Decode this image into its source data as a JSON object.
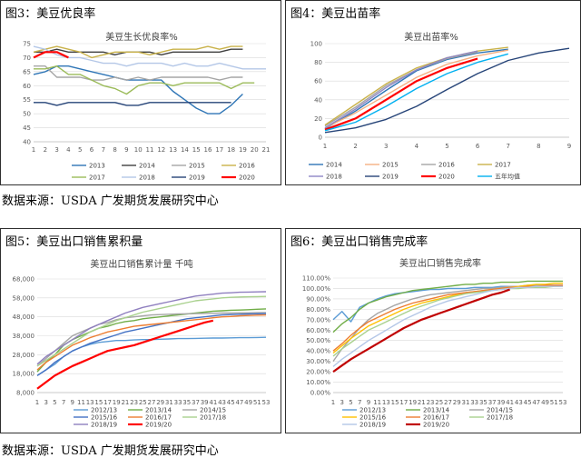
{
  "panels": [
    {
      "label": "图3：美豆优良率"
    },
    {
      "label": "图4：美豆出苗率"
    },
    {
      "label": "图5：美豆出口销售累积量"
    },
    {
      "label": "图6：美豆出口销售完成率"
    }
  ],
  "sources": [
    "数据来源：USDA 广发期货发展研究中心",
    "数据来源：USDA 广发期货发展研究中心"
  ],
  "colors": {
    "border": "#2f2f2f",
    "grid": "#d9d9d9"
  },
  "chart_data": [
    {
      "type": "line",
      "title": "美豆生长优良率%",
      "x": [
        1,
        2,
        3,
        4,
        5,
        6,
        7,
        8,
        9,
        10,
        11,
        12,
        13,
        14,
        15,
        16,
        17,
        18,
        19,
        20,
        21
      ],
      "ylim": [
        40,
        75
      ],
      "yticks": [
        40,
        45,
        50,
        55,
        60,
        65,
        70,
        75
      ],
      "legend_cols": 4,
      "series": [
        {
          "name": "2013",
          "color": "#2e75b6",
          "values": [
            64,
            65,
            67,
            67,
            66,
            65,
            64,
            63,
            62,
            62,
            62,
            62,
            58,
            55,
            52,
            50,
            50,
            53,
            57,
            null,
            null
          ]
        },
        {
          "name": "2014",
          "color": "#404040",
          "values": [
            72,
            72,
            73,
            72,
            72,
            72,
            72,
            71,
            72,
            72,
            72,
            71,
            72,
            72,
            72,
            72,
            72,
            73,
            73,
            null,
            null
          ]
        },
        {
          "name": "2015",
          "color": "#a5a5a5",
          "values": [
            67,
            67,
            63,
            63,
            63,
            62,
            62,
            63,
            62,
            63,
            62,
            63,
            63,
            63,
            63,
            63,
            62,
            63,
            63,
            null,
            null
          ]
        },
        {
          "name": "2016",
          "color": "#c9b24a",
          "values": [
            72,
            73,
            74,
            73,
            72,
            70,
            71,
            72,
            72,
            72,
            71,
            72,
            73,
            73,
            73,
            74,
            73,
            74,
            74,
            null,
            null
          ]
        },
        {
          "name": "2017",
          "color": "#9bbb59",
          "values": [
            66,
            66,
            67,
            64,
            64,
            62,
            60,
            59,
            57,
            60,
            61,
            61,
            60,
            61,
            61,
            61,
            61,
            59,
            61,
            61,
            null
          ]
        },
        {
          "name": "2018",
          "color": "#b4c7e7",
          "values": [
            74,
            73,
            71,
            70,
            70,
            69,
            68,
            68,
            67,
            68,
            68,
            68,
            67,
            68,
            67,
            67,
            68,
            67,
            66,
            66,
            66
          ]
        },
        {
          "name": "2019",
          "color": "#264478",
          "values": [
            54,
            54,
            53,
            54,
            54,
            54,
            54,
            54,
            53,
            53,
            54,
            54,
            54,
            54,
            54,
            54,
            54,
            54,
            null,
            null,
            null
          ]
        },
        {
          "name": "2020",
          "color": "#ff0000",
          "values": [
            70,
            72,
            72,
            70,
            null,
            null,
            null,
            null,
            null,
            null,
            null,
            null,
            null,
            null,
            null,
            null,
            null,
            null,
            null,
            null,
            null
          ]
        }
      ]
    },
    {
      "type": "line",
      "title": "美豆出苗率%",
      "x": [
        1,
        2,
        3,
        4,
        5,
        6,
        7,
        8,
        9
      ],
      "ylim": [
        0,
        100
      ],
      "yticks": [
        0,
        20,
        40,
        60,
        80,
        100
      ],
      "legend_cols": 4,
      "series": [
        {
          "name": "2014",
          "color": "#2e75b6",
          "values": [
            9,
            28,
            50,
            71,
            83,
            90,
            94,
            null,
            null
          ]
        },
        {
          "name": "2015",
          "color": "#f4b183",
          "values": [
            10,
            26,
            45,
            64,
            78,
            87,
            93,
            null,
            null
          ]
        },
        {
          "name": "2016",
          "color": "#a5a5a5",
          "values": [
            12,
            32,
            55,
            72,
            84,
            91,
            null,
            null,
            null
          ]
        },
        {
          "name": "2017",
          "color": "#c9b24a",
          "values": [
            13,
            35,
            57,
            74,
            85,
            92,
            96,
            null,
            null
          ]
        },
        {
          "name": "2018",
          "color": "#8e86c6",
          "values": [
            10,
            30,
            53,
            72,
            85,
            92,
            null,
            null,
            null
          ]
        },
        {
          "name": "2019",
          "color": "#264478",
          "values": [
            5,
            10,
            19,
            33,
            51,
            68,
            82,
            90,
            95
          ]
        },
        {
          "name": "2020",
          "color": "#ff0000",
          "values": [
            8,
            20,
            40,
            60,
            74,
            84,
            null,
            null,
            null
          ]
        },
        {
          "name": "五年均值",
          "color": "#00b0f0",
          "values": [
            7,
            16,
            33,
            52,
            68,
            80,
            89,
            null,
            null
          ]
        }
      ]
    },
    {
      "type": "line",
      "title": "美豆出口销售累计量 千吨",
      "x": [
        1,
        3,
        5,
        7,
        9,
        11,
        13,
        15,
        17,
        19,
        21,
        23,
        25,
        27,
        29,
        31,
        33,
        35,
        37,
        39,
        41,
        43,
        45,
        47,
        49,
        51,
        53
      ],
      "ylim": [
        8000,
        68000
      ],
      "yticks": [
        8000,
        18000,
        28000,
        38000,
        48000,
        58000,
        68000
      ],
      "legend_cols": 3,
      "series": [
        {
          "name": "2012/13",
          "color": "#5b9bd5",
          "values": [
            17000,
            20000,
            23000,
            27000,
            30000,
            32000,
            33500,
            34500,
            35000,
            35500,
            35500,
            35800,
            36000,
            36000,
            36200,
            36300,
            36500,
            36500,
            36600,
            36700,
            36800,
            36800,
            36900,
            37000,
            37000,
            37100,
            37200
          ]
        },
        {
          "name": "2013/14",
          "color": "#70ad47",
          "values": [
            19000,
            24000,
            28000,
            33000,
            36000,
            38000,
            40000,
            42000,
            43000,
            44500,
            45500,
            46000,
            47000,
            47500,
            48000,
            48500,
            49000,
            49500,
            50000,
            50500,
            51000,
            51200,
            51500,
            51600,
            51800,
            52000,
            52200
          ]
        },
        {
          "name": "2014/15",
          "color": "#a5a5a5",
          "values": [
            22000,
            26000,
            30000,
            34000,
            38000,
            40000,
            42000,
            44000,
            45000,
            46500,
            47500,
            48000,
            48500,
            49000,
            49200,
            49400,
            49500,
            49600,
            49700,
            49800,
            49900,
            50000,
            50000,
            50100,
            50100,
            50200,
            50200
          ]
        },
        {
          "name": "2015/16",
          "color": "#4472c4",
          "values": [
            17000,
            20000,
            24000,
            27000,
            30000,
            32000,
            34000,
            35500,
            37000,
            38500,
            40000,
            41000,
            42000,
            43000,
            44000,
            45000,
            46000,
            47000,
            47500,
            48000,
            48500,
            49000,
            49200,
            49400,
            49500,
            49600,
            49700
          ]
        },
        {
          "name": "2016/17",
          "color": "#ed7d31",
          "values": [
            20000,
            24000,
            27000,
            30000,
            33000,
            35000,
            37000,
            38500,
            40000,
            41000,
            42000,
            43000,
            43500,
            44000,
            44500,
            45000,
            45500,
            46000,
            46500,
            47000,
            47500,
            48000,
            48200,
            48500,
            48700,
            48900,
            49000
          ]
        },
        {
          "name": "2017/18",
          "color": "#a9d18e",
          "values": [
            22000,
            25000,
            28000,
            31000,
            34000,
            37000,
            40000,
            42000,
            44000,
            46000,
            47500,
            49000,
            50500,
            51500,
            52500,
            53500,
            54500,
            55500,
            56500,
            57000,
            57500,
            58000,
            58300,
            58500,
            58600,
            58700,
            58800
          ]
        },
        {
          "name": "2018/19",
          "color": "#8f7fbf",
          "values": [
            23000,
            27000,
            30000,
            33000,
            36000,
            39000,
            42000,
            44000,
            46000,
            48000,
            50000,
            51500,
            53000,
            54000,
            55000,
            56000,
            57000,
            58000,
            59000,
            59500,
            60000,
            60500,
            60700,
            61000,
            61100,
            61200,
            61300
          ]
        },
        {
          "name": "2019/20",
          "color": "#ff0000",
          "values": [
            10000,
            13500,
            17000,
            19500,
            22000,
            24000,
            26000,
            28000,
            30000,
            31000,
            32000,
            33000,
            34500,
            36000,
            37500,
            39000,
            40500,
            42000,
            43500,
            45000,
            46000,
            null,
            null,
            null,
            null,
            null,
            null
          ]
        }
      ]
    },
    {
      "type": "line",
      "title": "美豆出口销售完成率",
      "x": [
        1,
        3,
        5,
        7,
        9,
        11,
        13,
        15,
        17,
        19,
        21,
        23,
        25,
        27,
        29,
        31,
        33,
        35,
        37,
        39,
        41,
        43,
        45,
        47,
        49,
        51,
        53
      ],
      "ylim": [
        0,
        110
      ],
      "yticks": [
        0,
        10,
        20,
        30,
        40,
        50,
        60,
        70,
        80,
        90,
        100,
        110
      ],
      "yticklabels": [
        "0.00%",
        "10.00%",
        "20.00%",
        "30.00%",
        "40.00%",
        "50.00%",
        "60.00%",
        "70.00%",
        "80.00%",
        "90.00%",
        "100.00%",
        "110.00%"
      ],
      "legend_cols": 3,
      "series": [
        {
          "name": "2012/13",
          "color": "#5b9bd5",
          "values": [
            70,
            78,
            68,
            82,
            86,
            90,
            93,
            95,
            96,
            97,
            98,
            99,
            99,
            100,
            100,
            100,
            101,
            101,
            101,
            102,
            102,
            102,
            103,
            103,
            103,
            103,
            103
          ]
        },
        {
          "name": "2013/14",
          "color": "#70ad47",
          "values": [
            58,
            66,
            72,
            80,
            86,
            89,
            92,
            94,
            96,
            98,
            99,
            100,
            101,
            102,
            103,
            104,
            104,
            105,
            105,
            106,
            106,
            106,
            107,
            107,
            107,
            107,
            107
          ]
        },
        {
          "name": "2014/15",
          "color": "#a5a5a5",
          "values": [
            30,
            42,
            52,
            62,
            70,
            76,
            80,
            84,
            87,
            90,
            92,
            94,
            95,
            96,
            97,
            98,
            99,
            100,
            100,
            101,
            102,
            102,
            102,
            103,
            103,
            103,
            103
          ]
        },
        {
          "name": "2015/16",
          "color": "#ffc000",
          "values": [
            38,
            45,
            52,
            58,
            64,
            68,
            72,
            76,
            80,
            83,
            86,
            88,
            90,
            92,
            94,
            96,
            97,
            98,
            99,
            100,
            101,
            102,
            103,
            104,
            104,
            105,
            105
          ]
        },
        {
          "name": "2016/17",
          "color": "#ed7d31",
          "values": [
            40,
            47,
            55,
            62,
            68,
            72,
            76,
            80,
            83,
            86,
            88,
            90,
            92,
            94,
            95,
            96,
            97,
            98,
            99,
            100,
            101,
            101,
            102,
            102,
            103,
            103,
            103
          ]
        },
        {
          "name": "2017/18",
          "color": "#a9d18e",
          "values": [
            35,
            42,
            48,
            54,
            60,
            64,
            68,
            72,
            76,
            80,
            83,
            86,
            89,
            91,
            93,
            95,
            96,
            97,
            98,
            99,
            100,
            100,
            101,
            101,
            101,
            102,
            102
          ]
        },
        {
          "name": "2018/19",
          "color": "#b4c7e7",
          "values": [
            25,
            32,
            38,
            44,
            50,
            55,
            60,
            65,
            70,
            74,
            78,
            82,
            85,
            88,
            90,
            92,
            94,
            96,
            98,
            99,
            100,
            101,
            101,
            102,
            102,
            102,
            102
          ]
        },
        {
          "name": "2019/20",
          "color": "#c00000",
          "values": [
            20,
            26,
            32,
            37,
            42,
            47,
            52,
            57,
            62,
            66,
            70,
            73,
            76,
            79,
            82,
            85,
            88,
            91,
            94,
            96,
            99,
            null,
            null,
            null,
            null,
            null,
            null
          ]
        }
      ]
    }
  ]
}
